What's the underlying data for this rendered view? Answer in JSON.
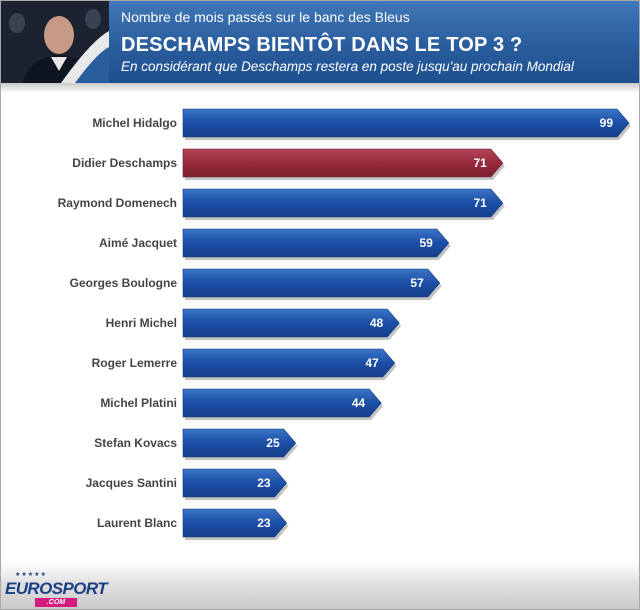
{
  "header": {
    "subtitle_top": "Nombre de mois passés sur le banc des Bleus",
    "headline": "DESCHAMPS BIENTÔT DANS LE TOP 3 ?",
    "subtitle_bottom": "En considérant que Deschamps restera en poste jusqu'au prochain Mondial"
  },
  "footer": {
    "logo_text": "EUROSPORT",
    "logo_sub": ".COM"
  },
  "colors": {
    "bar": "#1b4ea6",
    "highlight": "#962a3b",
    "header": "#2a5d9d"
  },
  "chart_data": {
    "type": "bar",
    "orientation": "horizontal",
    "title": "DESCHAMPS BIENTÔT DANS LE TOP 3 ?",
    "subtitle": "Nombre de mois passés sur le banc des Bleus",
    "note": "En considérant que Deschamps restera en poste jusqu'au prochain Mondial",
    "categories": [
      "Michel Hidalgo",
      "Didier Deschamps",
      "Raymond Domenech",
      "Aimé Jacquet",
      "Georges Boulogne",
      "Henri Michel",
      "Roger Lemerre",
      "Michel Platini",
      "Stefan Kovacs",
      "Jacques Santini",
      "Laurent Blanc"
    ],
    "values": [
      99,
      71,
      71,
      59,
      57,
      48,
      47,
      44,
      25,
      23,
      23
    ],
    "highlight": [
      "Didier Deschamps"
    ],
    "xlim": [
      0,
      99
    ],
    "grid": false,
    "legend": "none"
  }
}
